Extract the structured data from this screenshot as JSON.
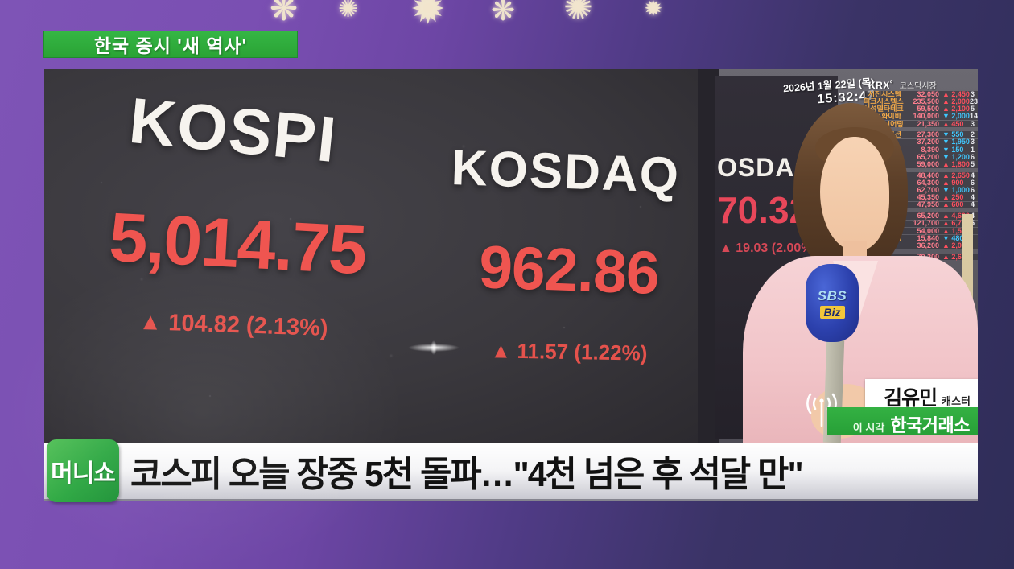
{
  "top_banner": {
    "text": "한국 증시 '새 역사'"
  },
  "indices": {
    "kospi": {
      "label": "KOSPI",
      "value": "5,014.75",
      "change": "▲ 104.82 (2.13%)"
    },
    "kosdaq": {
      "label": "KOSDAQ",
      "value": "962.86",
      "change": "▲ 11.57 (1.22%)"
    }
  },
  "live": {
    "date": "2026년 1월 22일 (목)",
    "time": "15:32:47",
    "exchange": "KRX˚",
    "market": "코스닥시장",
    "hall_display": {
      "label": "OSDAQ",
      "value": "70.32",
      "change": "▲ 19.03 (2.00%)"
    },
    "mic": {
      "line1": "SBS",
      "line2": "Biz"
    },
    "reporter_tag": {
      "name": "김유민",
      "role": "캐스터"
    },
    "location_tag": {
      "prefix": "이 시각",
      "place": "한국거래소"
    },
    "board_rows": [
      {
        "name": "서진시스템",
        "price": "32,050",
        "change": "▲ 2,450",
        "dir": "up",
        "edge": "3",
        "gap": false
      },
      {
        "name": "피크시스템스",
        "price": "235,500",
        "change": "▲ 2,000",
        "dir": "up",
        "edge": "23",
        "gap": false
      },
      {
        "name": "신성델타테크",
        "price": "59,500",
        "change": "▲ 2,100",
        "dir": "up",
        "edge": "5",
        "gap": false
      },
      {
        "name": "에코화이바",
        "price": "140,000",
        "change": "▼ 2,000",
        "dir": "down",
        "edge": "14",
        "gap": false
      },
      {
        "name": "엑진지니어링",
        "price": "21,350",
        "change": "▲ 450",
        "dir": "up",
        "edge": "3",
        "gap": true
      },
      {
        "name": "루션",
        "price": "27,300",
        "change": "▼ 550",
        "dir": "down",
        "edge": "2",
        "gap": false
      },
      {
        "name": "",
        "price": "37,200",
        "change": "▼ 1,950",
        "dir": "down",
        "edge": "3",
        "gap": false
      },
      {
        "name": "",
        "price": "8,390",
        "change": "▼ 150",
        "dir": "down",
        "edge": "1",
        "gap": false
      },
      {
        "name": "",
        "price": "65,200",
        "change": "▼ 1,200",
        "dir": "down",
        "edge": "6",
        "gap": false
      },
      {
        "name": "",
        "price": "59,000",
        "change": "▲ 1,800",
        "dir": "up",
        "edge": "5",
        "gap": true
      },
      {
        "name": "",
        "price": "48,400",
        "change": "▲ 2,650",
        "dir": "up",
        "edge": "4",
        "gap": false
      },
      {
        "name": "",
        "price": "64,300",
        "change": "▲ 900",
        "dir": "up",
        "edge": "6",
        "gap": false
      },
      {
        "name": "팀스",
        "price": "62,700",
        "change": "▼ 1,000",
        "dir": "down",
        "edge": "6",
        "gap": false
      },
      {
        "name": "레즈",
        "price": "45,350",
        "change": "▲ 250",
        "dir": "up",
        "edge": "4",
        "gap": false
      },
      {
        "name": "션",
        "price": "47,950",
        "change": "▲ 600",
        "dir": "up",
        "edge": "4",
        "gap": true
      },
      {
        "name": "",
        "price": "65,200",
        "change": "▲ 4,600",
        "dir": "up",
        "edge": "4",
        "gap": false
      },
      {
        "name": "키",
        "price": "121,700",
        "change": "▲ 6,700",
        "dir": "up",
        "edge": "5",
        "gap": false
      },
      {
        "name": "바이오",
        "price": "54,000",
        "change": "▲ 1,500",
        "dir": "up",
        "edge": "",
        "gap": false
      },
      {
        "name": "오택",
        "price": "15,840",
        "change": "▼ 480",
        "dir": "down",
        "edge": "",
        "gap": false
      },
      {
        "name": "",
        "price": "36,200",
        "change": "▲ 2,000",
        "dir": "up",
        "edge": "",
        "gap": true
      },
      {
        "name": "",
        "price": "70,200",
        "change": "▲ 2,600",
        "dir": "up",
        "edge": "",
        "gap": false
      }
    ]
  },
  "headline": {
    "logo": "머니쇼",
    "text": "코스피 오늘 장중 5천 돌파…\"4천 넘은 후 석달 만\""
  },
  "colors": {
    "accent_green": "#2fae3a",
    "index_red": "#ef5550",
    "up_red": "#ff4f5e",
    "down_blue": "#3fc8ff",
    "name_orange": "#f0a848",
    "price_pink": "#ff7e8e",
    "frame_purple": "#7a4fb2",
    "frame_navy": "#2f2d58"
  }
}
